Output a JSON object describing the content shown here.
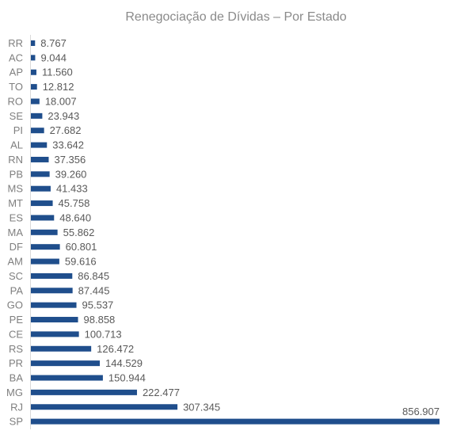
{
  "chart_data": {
    "type": "bar",
    "orientation": "horizontal",
    "title": "Renegociação de Dívidas – Por Estado",
    "xlabel": "",
    "ylabel": "",
    "grid": false,
    "legend": "none",
    "bar_color": "#1f4e8c",
    "categories": [
      "RR",
      "AC",
      "AP",
      "TO",
      "RO",
      "SE",
      "PI",
      "AL",
      "RN",
      "PB",
      "MS",
      "MT",
      "ES",
      "MA",
      "DF",
      "AM",
      "SC",
      "PA",
      "GO",
      "PE",
      "CE",
      "RS",
      "PR",
      "BA",
      "MG",
      "RJ",
      "SP"
    ],
    "values": [
      8767,
      9044,
      11560,
      12812,
      18007,
      23943,
      27682,
      33642,
      37356,
      39260,
      41433,
      45758,
      48640,
      55862,
      60801,
      59616,
      86845,
      87445,
      95537,
      98858,
      100713,
      126472,
      144529,
      150944,
      222477,
      307345,
      856907
    ],
    "value_labels": [
      "8.767",
      "9.044",
      "11.560",
      "12.812",
      "18.007",
      "23.943",
      "27.682",
      "33.642",
      "37.356",
      "39.260",
      "41.433",
      "45.758",
      "48.640",
      "55.862",
      "60.801",
      "59.616",
      "86.845",
      "87.445",
      "95.537",
      "98.858",
      "100.713",
      "126.472",
      "144.529",
      "150.944",
      "222.477",
      "307.345",
      "856.907"
    ],
    "xlim": [
      0,
      856907
    ]
  }
}
